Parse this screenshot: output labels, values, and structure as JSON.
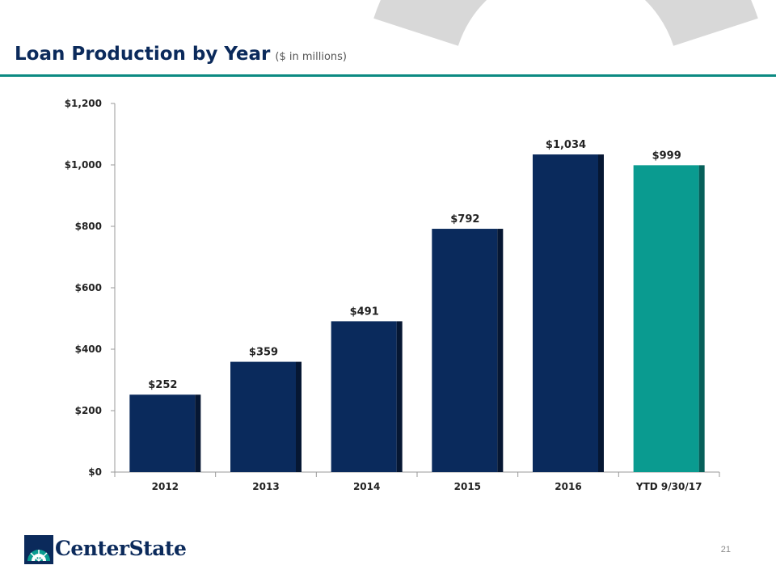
{
  "slide": {
    "title": "Loan Production by Year",
    "subtitle": "($ in millions)",
    "page_number": "21",
    "logo_text": "CenterState"
  },
  "colors": {
    "navy": "#0a2a5c",
    "navy_shadow": "#061733",
    "teal": "#0a9b90",
    "teal_shadow": "#06605a",
    "rule": "#0b8a82",
    "bg_shape": "#d8d8d8"
  },
  "chart_data": {
    "type": "bar",
    "title": "Loan Production by Year",
    "categories": [
      "2012",
      "2013",
      "2014",
      "2015",
      "2016",
      "YTD 9/30/17"
    ],
    "values": [
      252,
      359,
      491,
      792,
      1034,
      999
    ],
    "data_labels": [
      "$252",
      "$359",
      "$491",
      "$792",
      "$1,034",
      "$999"
    ],
    "highlight_index": 5,
    "ylim": [
      0,
      1200
    ],
    "yticks": [
      0,
      200,
      400,
      600,
      800,
      1000,
      1200
    ],
    "ytick_labels": [
      "$0",
      "$200",
      "$400",
      "$600",
      "$800",
      "$1,000",
      "$1,200"
    ],
    "grid": false,
    "legend": "none"
  }
}
